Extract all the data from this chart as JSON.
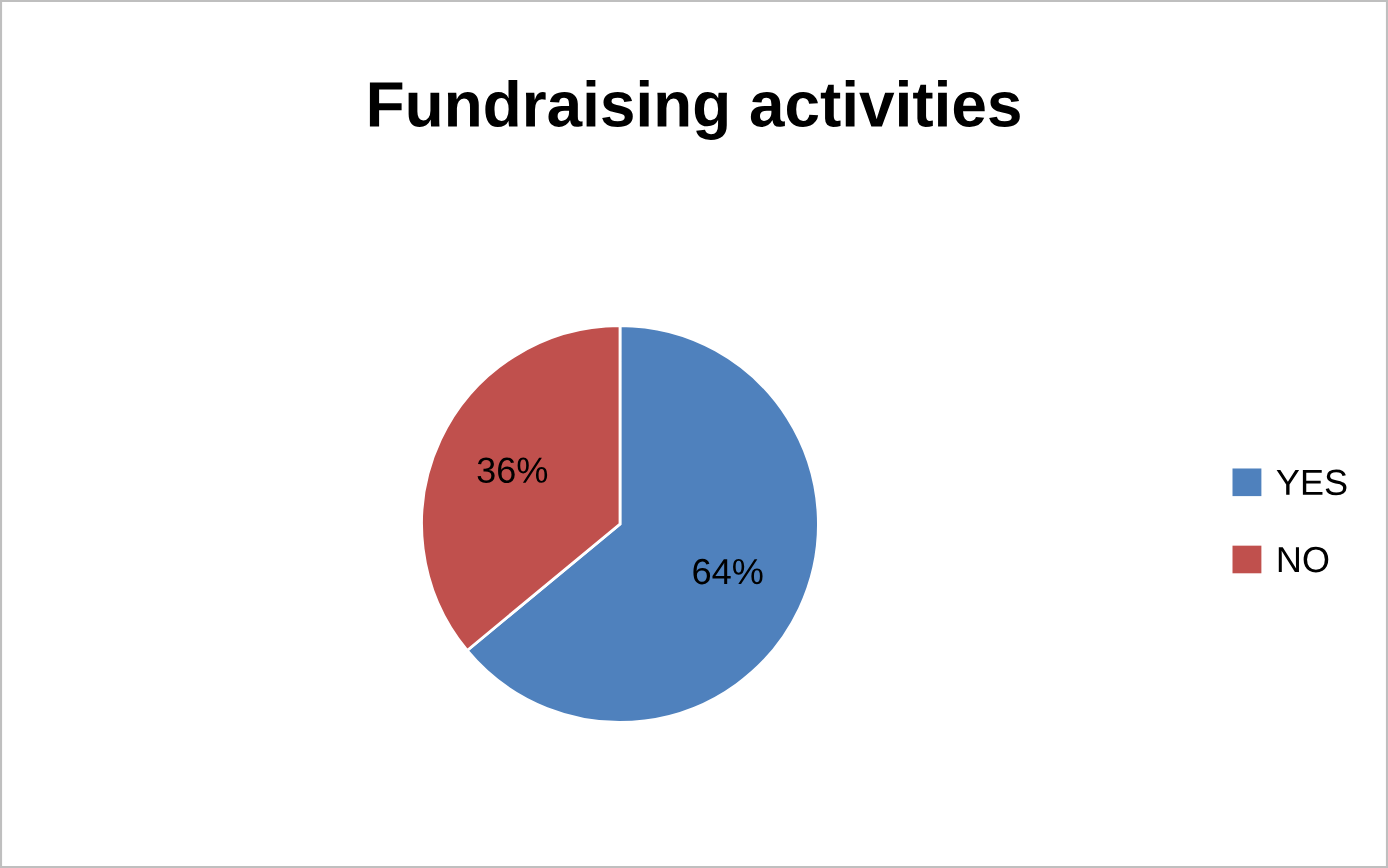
{
  "chart_data": {
    "type": "pie",
    "title": "Fundraising activities",
    "categories": [
      "YES",
      "NO"
    ],
    "values": [
      64,
      36
    ],
    "colors": [
      "#4f81bd",
      "#c0504d"
    ],
    "value_labels": [
      "64%",
      "36%"
    ],
    "legend": "right"
  }
}
